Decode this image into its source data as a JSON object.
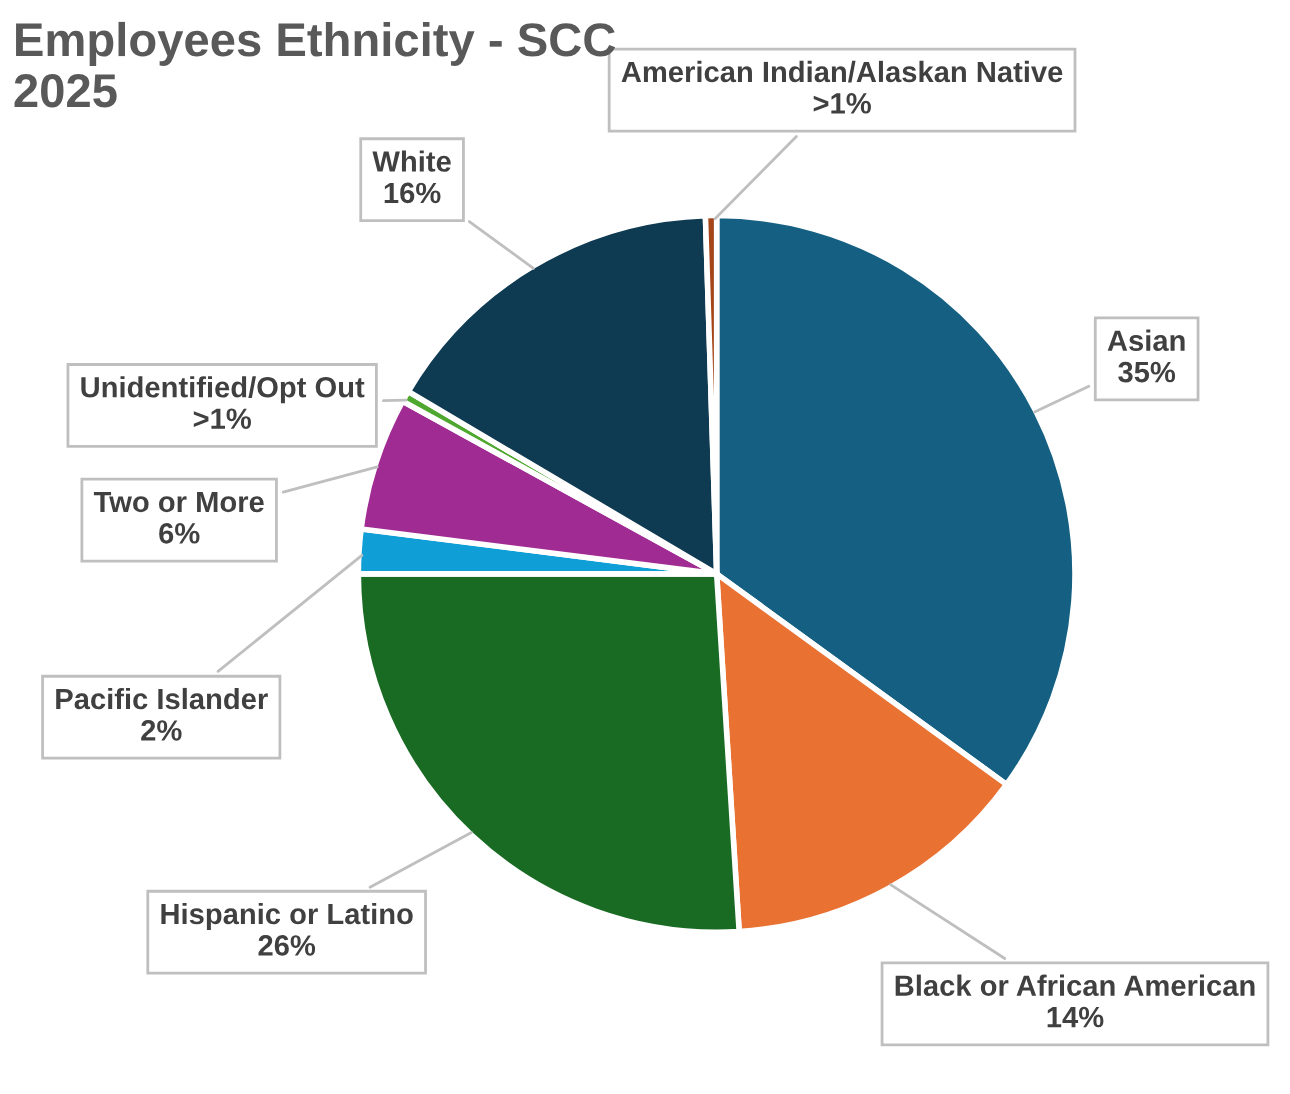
{
  "chart_data": {
    "type": "pie",
    "title": "Employees Ethnicity - SCC\n2025",
    "categories": [
      "Asian",
      "Black or African American",
      "Hispanic or Latino",
      "Pacific Islander",
      "Two or More",
      "Unidentified/Opt Out",
      "White",
      "American Indian/Alaskan Native"
    ],
    "values": [
      35,
      14,
      26,
      2,
      6,
      0.5,
      16,
      0.5
    ],
    "value_labels": [
      "35%",
      "14%",
      "26%",
      "2%",
      "6%",
      ">1%",
      "16%",
      ">1%"
    ],
    "colors": [
      "#156082",
      "#e97132",
      "#196b24",
      "#0f9ed5",
      "#a02b93",
      "#4ea72e",
      "#0e3a52",
      "#a5461a"
    ],
    "legend": false
  }
}
